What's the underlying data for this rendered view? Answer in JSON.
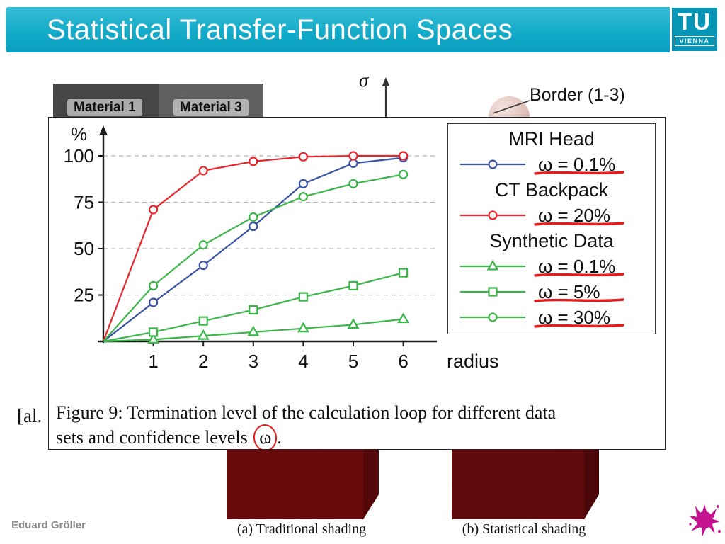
{
  "header": {
    "title": "Statistical Transfer-Function Spaces",
    "logo_top": "TU",
    "logo_bottom": "VIENNA"
  },
  "background": {
    "material1_label": "Material 1",
    "material3_label": "Material 3",
    "sigma_label": "σ",
    "border_label": "Border (1-3)",
    "citation_fragment": "[al."
  },
  "chart_data": {
    "type": "line",
    "title": "",
    "xlabel": "radius",
    "ylabel": "%",
    "x": [
      0,
      1,
      2,
      3,
      4,
      5,
      6
    ],
    "xticks": [
      1,
      2,
      3,
      4,
      5,
      6
    ],
    "yticks": [
      25,
      50,
      75,
      100
    ],
    "ylim": [
      0,
      105
    ],
    "grid": true,
    "series": [
      {
        "name": "MRI Head ω = 0.1%",
        "color": "#3a53a4",
        "marker": "circle",
        "values": [
          0,
          21,
          41,
          62,
          85,
          96,
          99
        ]
      },
      {
        "name": "CT Backpack ω = 20%",
        "color": "#e8262e",
        "marker": "circle",
        "values": [
          0,
          71,
          92,
          97,
          99.5,
          100,
          100
        ]
      },
      {
        "name": "Synthetic Data ω = 0.1%",
        "color": "#3cb54a",
        "marker": "triangle",
        "values": [
          0,
          1,
          3,
          5,
          7,
          9,
          12
        ]
      },
      {
        "name": "Synthetic Data ω = 5%",
        "color": "#3cb54a",
        "marker": "square",
        "values": [
          0,
          5,
          11,
          17,
          24,
          30,
          37
        ]
      },
      {
        "name": "Synthetic Data ω = 30%",
        "color": "#3cb54a",
        "marker": "circle",
        "values": [
          0,
          30,
          52,
          67,
          78,
          85,
          90
        ]
      }
    ],
    "legend": {
      "position": "upper right",
      "groups": [
        {
          "title": "MRI Head",
          "entries": [
            {
              "series": 0,
              "label": "ω = 0.1%"
            }
          ]
        },
        {
          "title": "CT Backpack",
          "entries": [
            {
              "series": 1,
              "label": "ω = 20%"
            }
          ]
        },
        {
          "title": "Synthetic Data",
          "entries": [
            {
              "series": 2,
              "label": "ω = 0.1%"
            },
            {
              "series": 3,
              "label": "ω = 5%"
            },
            {
              "series": 4,
              "label": "ω = 30%"
            }
          ]
        }
      ]
    },
    "annotations": "red hand-drawn underlines below each ω value in legend; red ellipse around ω in the caption"
  },
  "figure_caption": {
    "line1": "Figure 9:  Termination level of the calculation loop for different data",
    "line2_pre": "sets and confidence levels ",
    "omega": "ω",
    "line2_post": "."
  },
  "bottom": {
    "caption_a": "(a)  Traditional shading",
    "caption_b": "(b)  Statistical shading",
    "author": "Eduard Gröller"
  },
  "colors": {
    "header_teal": "#14abc9",
    "annotation_red": "#e41c1c",
    "splat_magenta": "#c4138e"
  }
}
